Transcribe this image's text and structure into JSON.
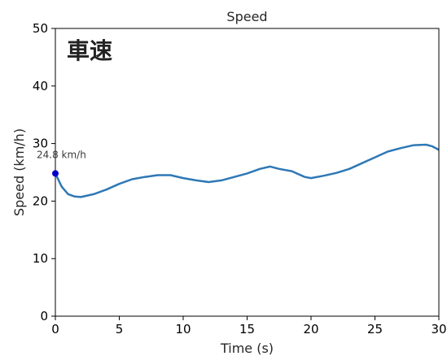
{
  "chart_data": {
    "type": "line",
    "title": "Speed",
    "xlabel": "Time (s)",
    "ylabel": "Speed (km/h)",
    "xlim": [
      0,
      30
    ],
    "ylim": [
      0,
      50
    ],
    "xticks": [
      "0",
      "5",
      "10",
      "15",
      "20",
      "25",
      "30"
    ],
    "yticks": [
      "0",
      "10",
      "20",
      "30",
      "40",
      "50"
    ],
    "grid": false,
    "overlay_label": "車速",
    "series": [
      {
        "color": "#2e78b6",
        "x": [
          0,
          0.5,
          1,
          1.5,
          2,
          3,
          4,
          5,
          6,
          7,
          8,
          9,
          10,
          11,
          12,
          13,
          14,
          15,
          16,
          16.8,
          17.5,
          18.5,
          19.5,
          20,
          21,
          22,
          23,
          24,
          25,
          26,
          27,
          28,
          29,
          29.5,
          30
        ],
        "y": [
          24.8,
          22.5,
          21.2,
          20.8,
          20.7,
          21.2,
          22.0,
          23.0,
          23.8,
          24.2,
          24.5,
          24.5,
          24.0,
          23.6,
          23.3,
          23.6,
          24.2,
          24.8,
          25.6,
          26.0,
          25.6,
          25.2,
          24.2,
          24.0,
          24.4,
          24.9,
          25.6,
          26.6,
          27.6,
          28.6,
          29.2,
          29.7,
          29.8,
          29.5,
          28.9
        ]
      }
    ],
    "marker": {
      "x": 0,
      "y": 24.8,
      "color": "#0000cc",
      "label": "24.8 km/h"
    }
  }
}
